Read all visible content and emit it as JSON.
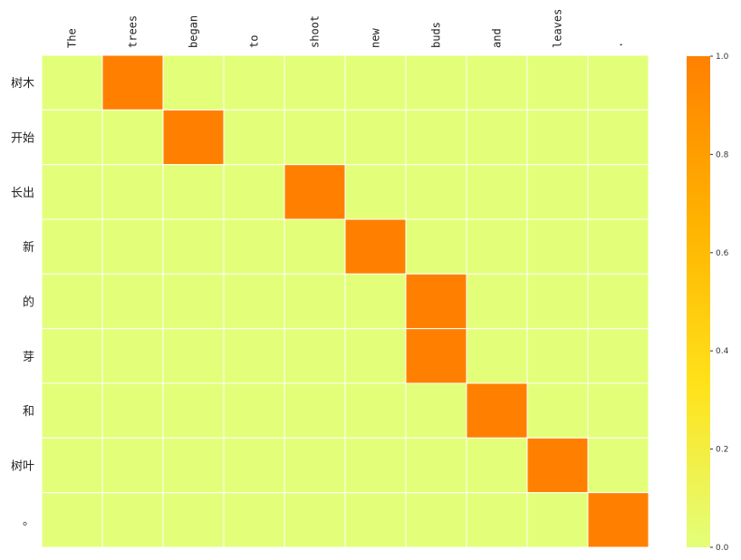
{
  "chart_data": {
    "type": "heatmap",
    "title": "",
    "xlabel": "",
    "ylabel": "",
    "x_categories": [
      "The",
      "trees",
      "began",
      "to",
      "shoot",
      "new",
      "buds",
      "and",
      "leaves",
      "."
    ],
    "y_categories": [
      "树木",
      "开始",
      "长出",
      "新",
      "的",
      "芽",
      "和",
      "树叶",
      "。"
    ],
    "values": [
      [
        0.0,
        1.0,
        0.0,
        0.0,
        0.0,
        0.0,
        0.0,
        0.0,
        0.0,
        0.0
      ],
      [
        0.0,
        0.0,
        1.0,
        0.0,
        0.0,
        0.0,
        0.0,
        0.0,
        0.0,
        0.0
      ],
      [
        0.0,
        0.0,
        0.0,
        0.0,
        1.0,
        0.0,
        0.0,
        0.0,
        0.0,
        0.0
      ],
      [
        0.0,
        0.0,
        0.0,
        0.0,
        0.0,
        1.0,
        0.0,
        0.0,
        0.0,
        0.0
      ],
      [
        0.0,
        0.0,
        0.0,
        0.0,
        0.0,
        0.0,
        1.0,
        0.0,
        0.0,
        0.0
      ],
      [
        0.0,
        0.0,
        0.0,
        0.0,
        0.0,
        0.0,
        1.0,
        0.0,
        0.0,
        0.0
      ],
      [
        0.0,
        0.0,
        0.0,
        0.0,
        0.0,
        0.0,
        0.0,
        1.0,
        0.0,
        0.0
      ],
      [
        0.0,
        0.0,
        0.0,
        0.0,
        0.0,
        0.0,
        0.0,
        0.0,
        1.0,
        0.0
      ],
      [
        0.0,
        0.0,
        0.0,
        0.0,
        0.0,
        0.0,
        0.0,
        0.0,
        0.0,
        1.0
      ]
    ],
    "colorbar": {
      "range": [
        0.0,
        1.0
      ],
      "ticks": [
        "0.0",
        "0.2",
        "0.4",
        "0.6",
        "0.8",
        "1.0"
      ],
      "colors": [
        "#e3ff7a",
        "#ffe21a",
        "#ffb300",
        "#ff8000"
      ]
    },
    "x_axis_position": "top",
    "grid": true
  }
}
